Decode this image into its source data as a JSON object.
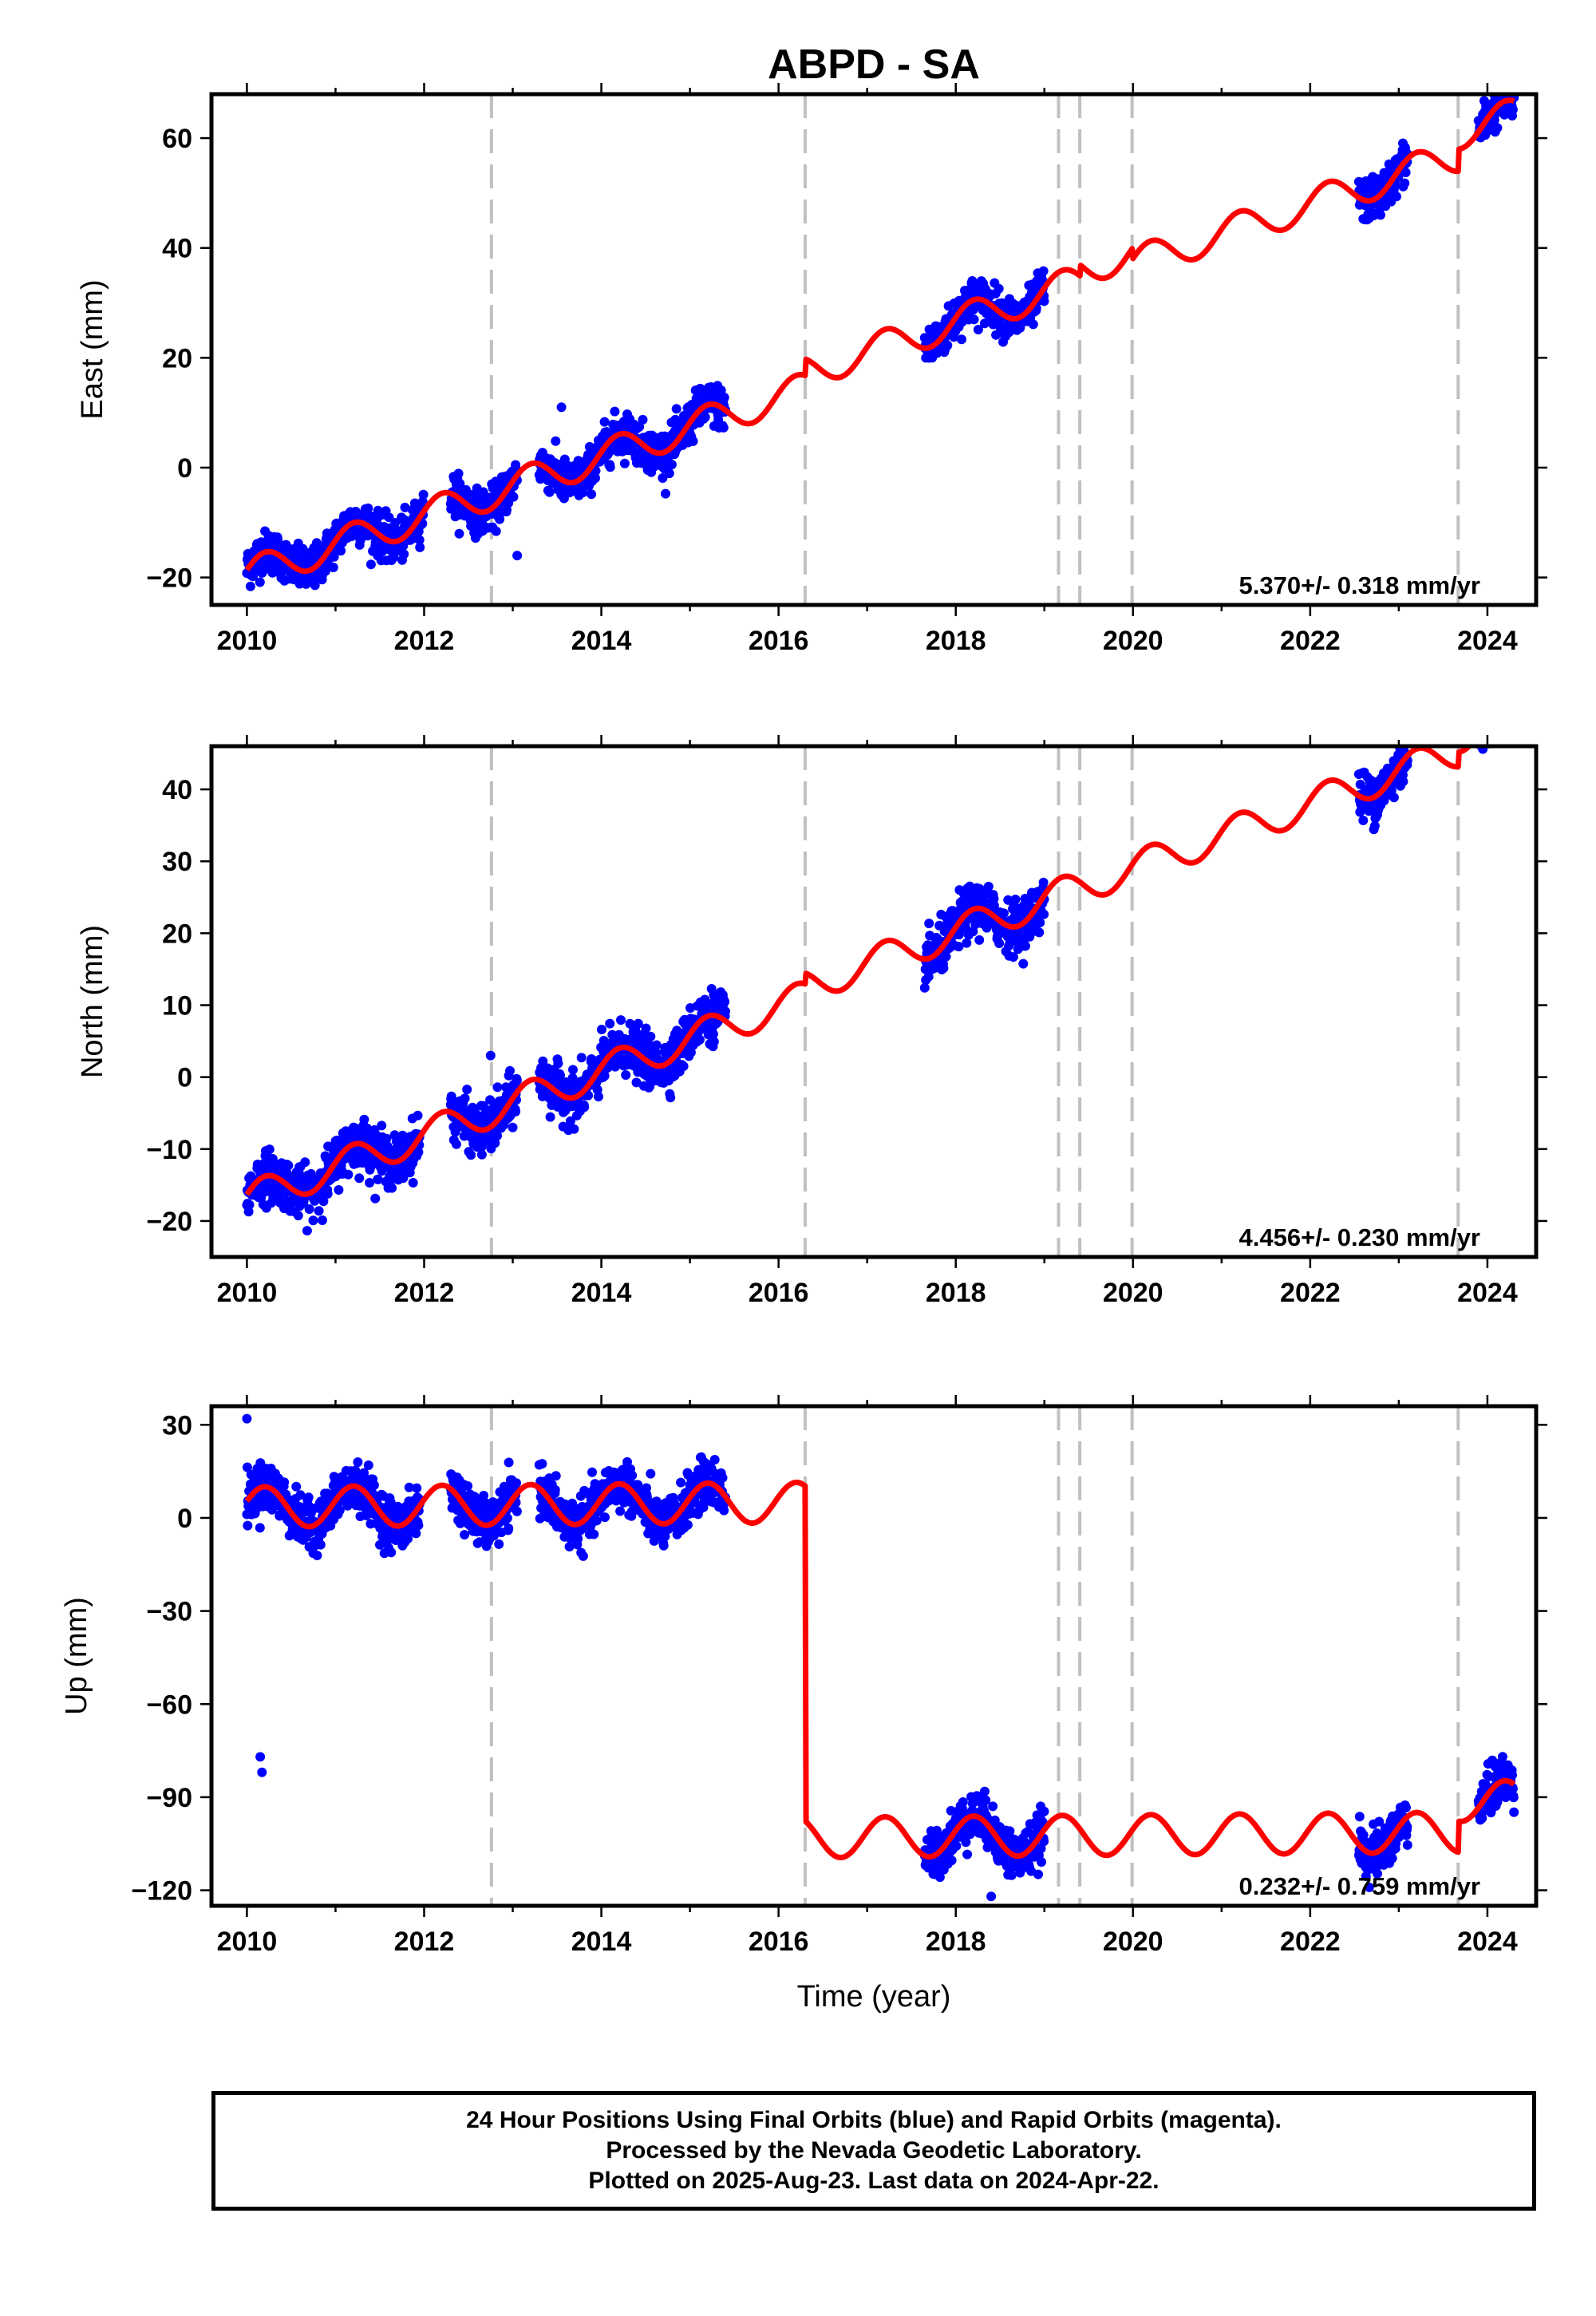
{
  "title": "ABPD - SA",
  "xlabel": "Time (year)",
  "caption": {
    "line1": "24 Hour Positions Using Final Orbits (blue) and Rapid Orbits (magenta).",
    "line2": "Processed by the Nevada Geodetic Laboratory.",
    "line3": "Plotted on 2025-Aug-23. Last data on 2024-Apr-22."
  },
  "colors": {
    "final_orbits": "#0000ff",
    "model": "#ff0000",
    "breaks": "#c0c0c0"
  },
  "chart_data": [
    {
      "type": "scatter",
      "panel": "east",
      "ylabel": "East (mm)",
      "rate_label": "5.370+/- 0.318 mm/yr",
      "xlim": [
        2009.6,
        2024.55
      ],
      "ylim": [
        -25,
        68
      ],
      "xticks": [
        2010,
        2012,
        2014,
        2016,
        2018,
        2020,
        2022,
        2024
      ],
      "yticks": [
        -20,
        0,
        20,
        40,
        60
      ],
      "grid": false,
      "breaks": [
        2012.76,
        2016.3,
        2019.16,
        2019.4,
        2019.99,
        2023.67
      ],
      "rate": 5.37,
      "model": {
        "ref_year": 2010.0,
        "offset": -19.5,
        "rate": 5.37,
        "seasonal_amplitude": 3.0,
        "steps": [
          {
            "year": 2016.3,
            "value": 3.0
          },
          {
            "year": 2019.4,
            "value": 2.0
          },
          {
            "year": 2019.99,
            "value": -2.0
          },
          {
            "year": 2023.67,
            "value": 4.0
          }
        ]
      },
      "observation_segments": [
        [
          2010.0,
          2012.0
        ],
        [
          2012.3,
          2013.05
        ],
        [
          2013.3,
          2015.4
        ],
        [
          2017.65,
          2019.0
        ],
        [
          2022.55,
          2023.1
        ],
        [
          2023.9,
          2024.3
        ]
      ],
      "scatter_sd": 1.9,
      "outliers": [
        {
          "x": 2013.05,
          "y": -16
        },
        {
          "x": 2013.55,
          "y": 11
        }
      ]
    },
    {
      "type": "scatter",
      "panel": "north",
      "ylabel": "North (mm)",
      "rate_label": "4.456+/- 0.230 mm/yr",
      "xlim": [
        2009.6,
        2024.55
      ],
      "ylim": [
        -25,
        46
      ],
      "xticks": [
        2010,
        2012,
        2014,
        2016,
        2018,
        2020,
        2022,
        2024
      ],
      "yticks": [
        -20,
        -10,
        0,
        10,
        20,
        30,
        40
      ],
      "grid": false,
      "breaks": [
        2012.76,
        2016.3,
        2019.16,
        2019.4,
        2019.99,
        2023.67
      ],
      "rate": 4.456,
      "model": {
        "ref_year": 2010.0,
        "offset": -17.0,
        "rate": 4.456,
        "seasonal_amplitude": 2.3,
        "steps": [
          {
            "year": 2016.3,
            "value": 1.5
          },
          {
            "year": 2023.67,
            "value": 2.0
          }
        ]
      },
      "observation_segments": [
        [
          2010.0,
          2011.95
        ],
        [
          2012.3,
          2013.05
        ],
        [
          2013.3,
          2015.4
        ],
        [
          2017.65,
          2019.0
        ],
        [
          2022.55,
          2023.1
        ],
        [
          2023.9,
          2024.3
        ]
      ],
      "scatter_sd": 1.7,
      "outliers": [
        {
          "x": 2012.75,
          "y": 3
        }
      ]
    },
    {
      "type": "scatter",
      "panel": "up",
      "ylabel": "Up (mm)",
      "rate_label": "0.232+/- 0.759 mm/yr",
      "xlim": [
        2009.6,
        2024.55
      ],
      "ylim": [
        -125,
        36
      ],
      "xticks": [
        2010,
        2012,
        2014,
        2016,
        2018,
        2020,
        2022,
        2024
      ],
      "yticks": [
        -120,
        -90,
        -60,
        -30,
        0,
        30
      ],
      "grid": false,
      "breaks": [
        2012.76,
        2016.3,
        2019.16,
        2019.4,
        2019.99,
        2023.67
      ],
      "rate": 0.232,
      "model": {
        "ref_year": 2010.0,
        "offset": 3.5,
        "rate": 0.232,
        "seasonal_amplitude": 6.5,
        "steps": [
          {
            "year": 2016.3,
            "value": -108.0
          },
          {
            "year": 2023.67,
            "value": 10.0
          }
        ]
      },
      "observation_segments": [
        [
          2010.0,
          2011.95
        ],
        [
          2012.3,
          2013.05
        ],
        [
          2013.3,
          2015.4
        ],
        [
          2017.65,
          2019.0
        ],
        [
          2022.55,
          2023.1
        ],
        [
          2023.9,
          2024.3
        ]
      ],
      "scatter_sd": 3.8,
      "outliers": [
        {
          "x": 2010.15,
          "y": -77
        },
        {
          "x": 2010.17,
          "y": -82
        },
        {
          "x": 2010.0,
          "y": 32
        },
        {
          "x": 2018.4,
          "y": -122
        }
      ]
    }
  ]
}
